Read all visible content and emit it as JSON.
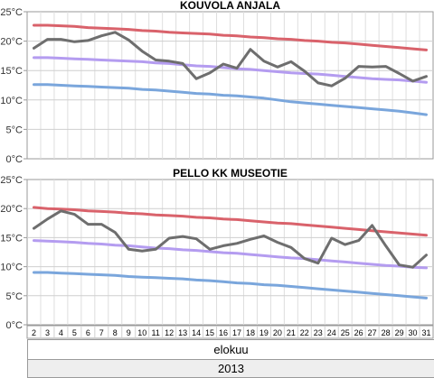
{
  "chart_data": [
    {
      "type": "line",
      "title": "KOUVOLA ANJALA",
      "y_unit": "°C",
      "ylim": [
        0,
        25
      ],
      "yticks": [
        0,
        5,
        10,
        15,
        20,
        25
      ],
      "grid": true,
      "x": [
        2,
        3,
        4,
        5,
        6,
        7,
        8,
        9,
        10,
        11,
        12,
        13,
        14,
        15,
        16,
        17,
        18,
        19,
        20,
        21,
        22,
        23,
        24,
        25,
        26,
        27,
        28,
        29,
        30,
        31
      ],
      "series": [
        {
          "color": "#d9626b",
          "values": [
            22.7,
            22.7,
            22.6,
            22.5,
            22.3,
            22.2,
            22.1,
            22.0,
            21.8,
            21.7,
            21.5,
            21.4,
            21.3,
            21.2,
            21.0,
            20.9,
            20.7,
            20.6,
            20.4,
            20.3,
            20.1,
            20.0,
            19.8,
            19.7,
            19.5,
            19.3,
            19.1,
            18.9,
            18.7,
            18.5
          ]
        },
        {
          "color": "#b49cf0",
          "values": [
            17.2,
            17.2,
            17.1,
            17.0,
            16.9,
            16.8,
            16.7,
            16.6,
            16.5,
            16.3,
            16.2,
            16.0,
            15.8,
            15.7,
            15.5,
            15.3,
            15.2,
            15.0,
            14.8,
            14.6,
            14.5,
            14.4,
            14.2,
            14.0,
            13.8,
            13.6,
            13.5,
            13.4,
            13.2,
            13.0
          ]
        },
        {
          "color": "#7aa6dc",
          "values": [
            12.6,
            12.6,
            12.5,
            12.4,
            12.3,
            12.2,
            12.1,
            12.0,
            11.8,
            11.7,
            11.5,
            11.3,
            11.1,
            11.0,
            10.8,
            10.7,
            10.5,
            10.3,
            10.0,
            9.7,
            9.5,
            9.3,
            9.1,
            8.9,
            8.7,
            8.5,
            8.3,
            8.1,
            7.8,
            7.5
          ]
        },
        {
          "color": "#6e6e6e",
          "values": [
            18.8,
            20.3,
            20.3,
            19.9,
            20.1,
            20.9,
            21.5,
            20.2,
            18.3,
            16.8,
            16.6,
            16.2,
            13.6,
            14.6,
            16.1,
            15.4,
            18.6,
            16.6,
            15.6,
            16.5,
            14.9,
            12.9,
            12.4,
            13.7,
            15.7,
            15.6,
            15.7,
            14.5,
            13.2,
            14.0
          ]
        }
      ]
    },
    {
      "type": "line",
      "title": "PELLO KK MUSEOTIE",
      "y_unit": "°C",
      "ylim": [
        0,
        25
      ],
      "yticks": [
        0,
        5,
        10,
        15,
        20,
        25
      ],
      "grid": true,
      "x": [
        2,
        3,
        4,
        5,
        6,
        7,
        8,
        9,
        10,
        11,
        12,
        13,
        14,
        15,
        16,
        17,
        18,
        19,
        20,
        21,
        22,
        23,
        24,
        25,
        26,
        27,
        28,
        29,
        30,
        31
      ],
      "series": [
        {
          "color": "#d9626b",
          "values": [
            20.2,
            20.0,
            19.9,
            19.8,
            19.6,
            19.5,
            19.4,
            19.2,
            19.1,
            18.9,
            18.8,
            18.7,
            18.5,
            18.4,
            18.2,
            18.1,
            17.9,
            17.7,
            17.5,
            17.4,
            17.2,
            17.0,
            16.8,
            16.6,
            16.4,
            16.2,
            16.0,
            15.8,
            15.6,
            15.4
          ]
        },
        {
          "color": "#b49cf0",
          "values": [
            14.5,
            14.4,
            14.3,
            14.2,
            14.0,
            13.9,
            13.7,
            13.6,
            13.4,
            13.2,
            13.1,
            12.9,
            12.8,
            12.6,
            12.4,
            12.3,
            12.1,
            11.9,
            11.7,
            11.5,
            11.4,
            11.2,
            11.0,
            10.8,
            10.6,
            10.4,
            10.2,
            10.1,
            9.9,
            9.8
          ]
        },
        {
          "color": "#7aa6dc",
          "values": [
            9.0,
            9.0,
            8.9,
            8.8,
            8.7,
            8.6,
            8.5,
            8.3,
            8.2,
            8.1,
            8.0,
            7.9,
            7.7,
            7.6,
            7.4,
            7.2,
            7.1,
            6.9,
            6.8,
            6.6,
            6.4,
            6.2,
            6.0,
            5.8,
            5.6,
            5.4,
            5.2,
            5.0,
            4.8,
            4.6
          ]
        },
        {
          "color": "#6e6e6e",
          "values": [
            16.6,
            18.2,
            19.6,
            19.0,
            17.3,
            17.3,
            15.9,
            13.0,
            12.7,
            13.0,
            14.9,
            15.2,
            14.8,
            13.0,
            13.6,
            14.0,
            14.7,
            15.3,
            14.2,
            13.3,
            11.4,
            10.6,
            14.9,
            13.8,
            14.5,
            17.1,
            13.6,
            10.3,
            9.9,
            12.0
          ]
        }
      ]
    }
  ],
  "x_labels": [
    "2",
    "3",
    "4",
    "5",
    "6",
    "7",
    "8",
    "9",
    "10",
    "11",
    "12",
    "13",
    "14",
    "15",
    "16",
    "17",
    "18",
    "19",
    "20",
    "21",
    "22",
    "23",
    "24",
    "25",
    "26",
    "27",
    "28",
    "29",
    "30",
    "31"
  ],
  "month_label": "elokuu",
  "year_label": "2013"
}
